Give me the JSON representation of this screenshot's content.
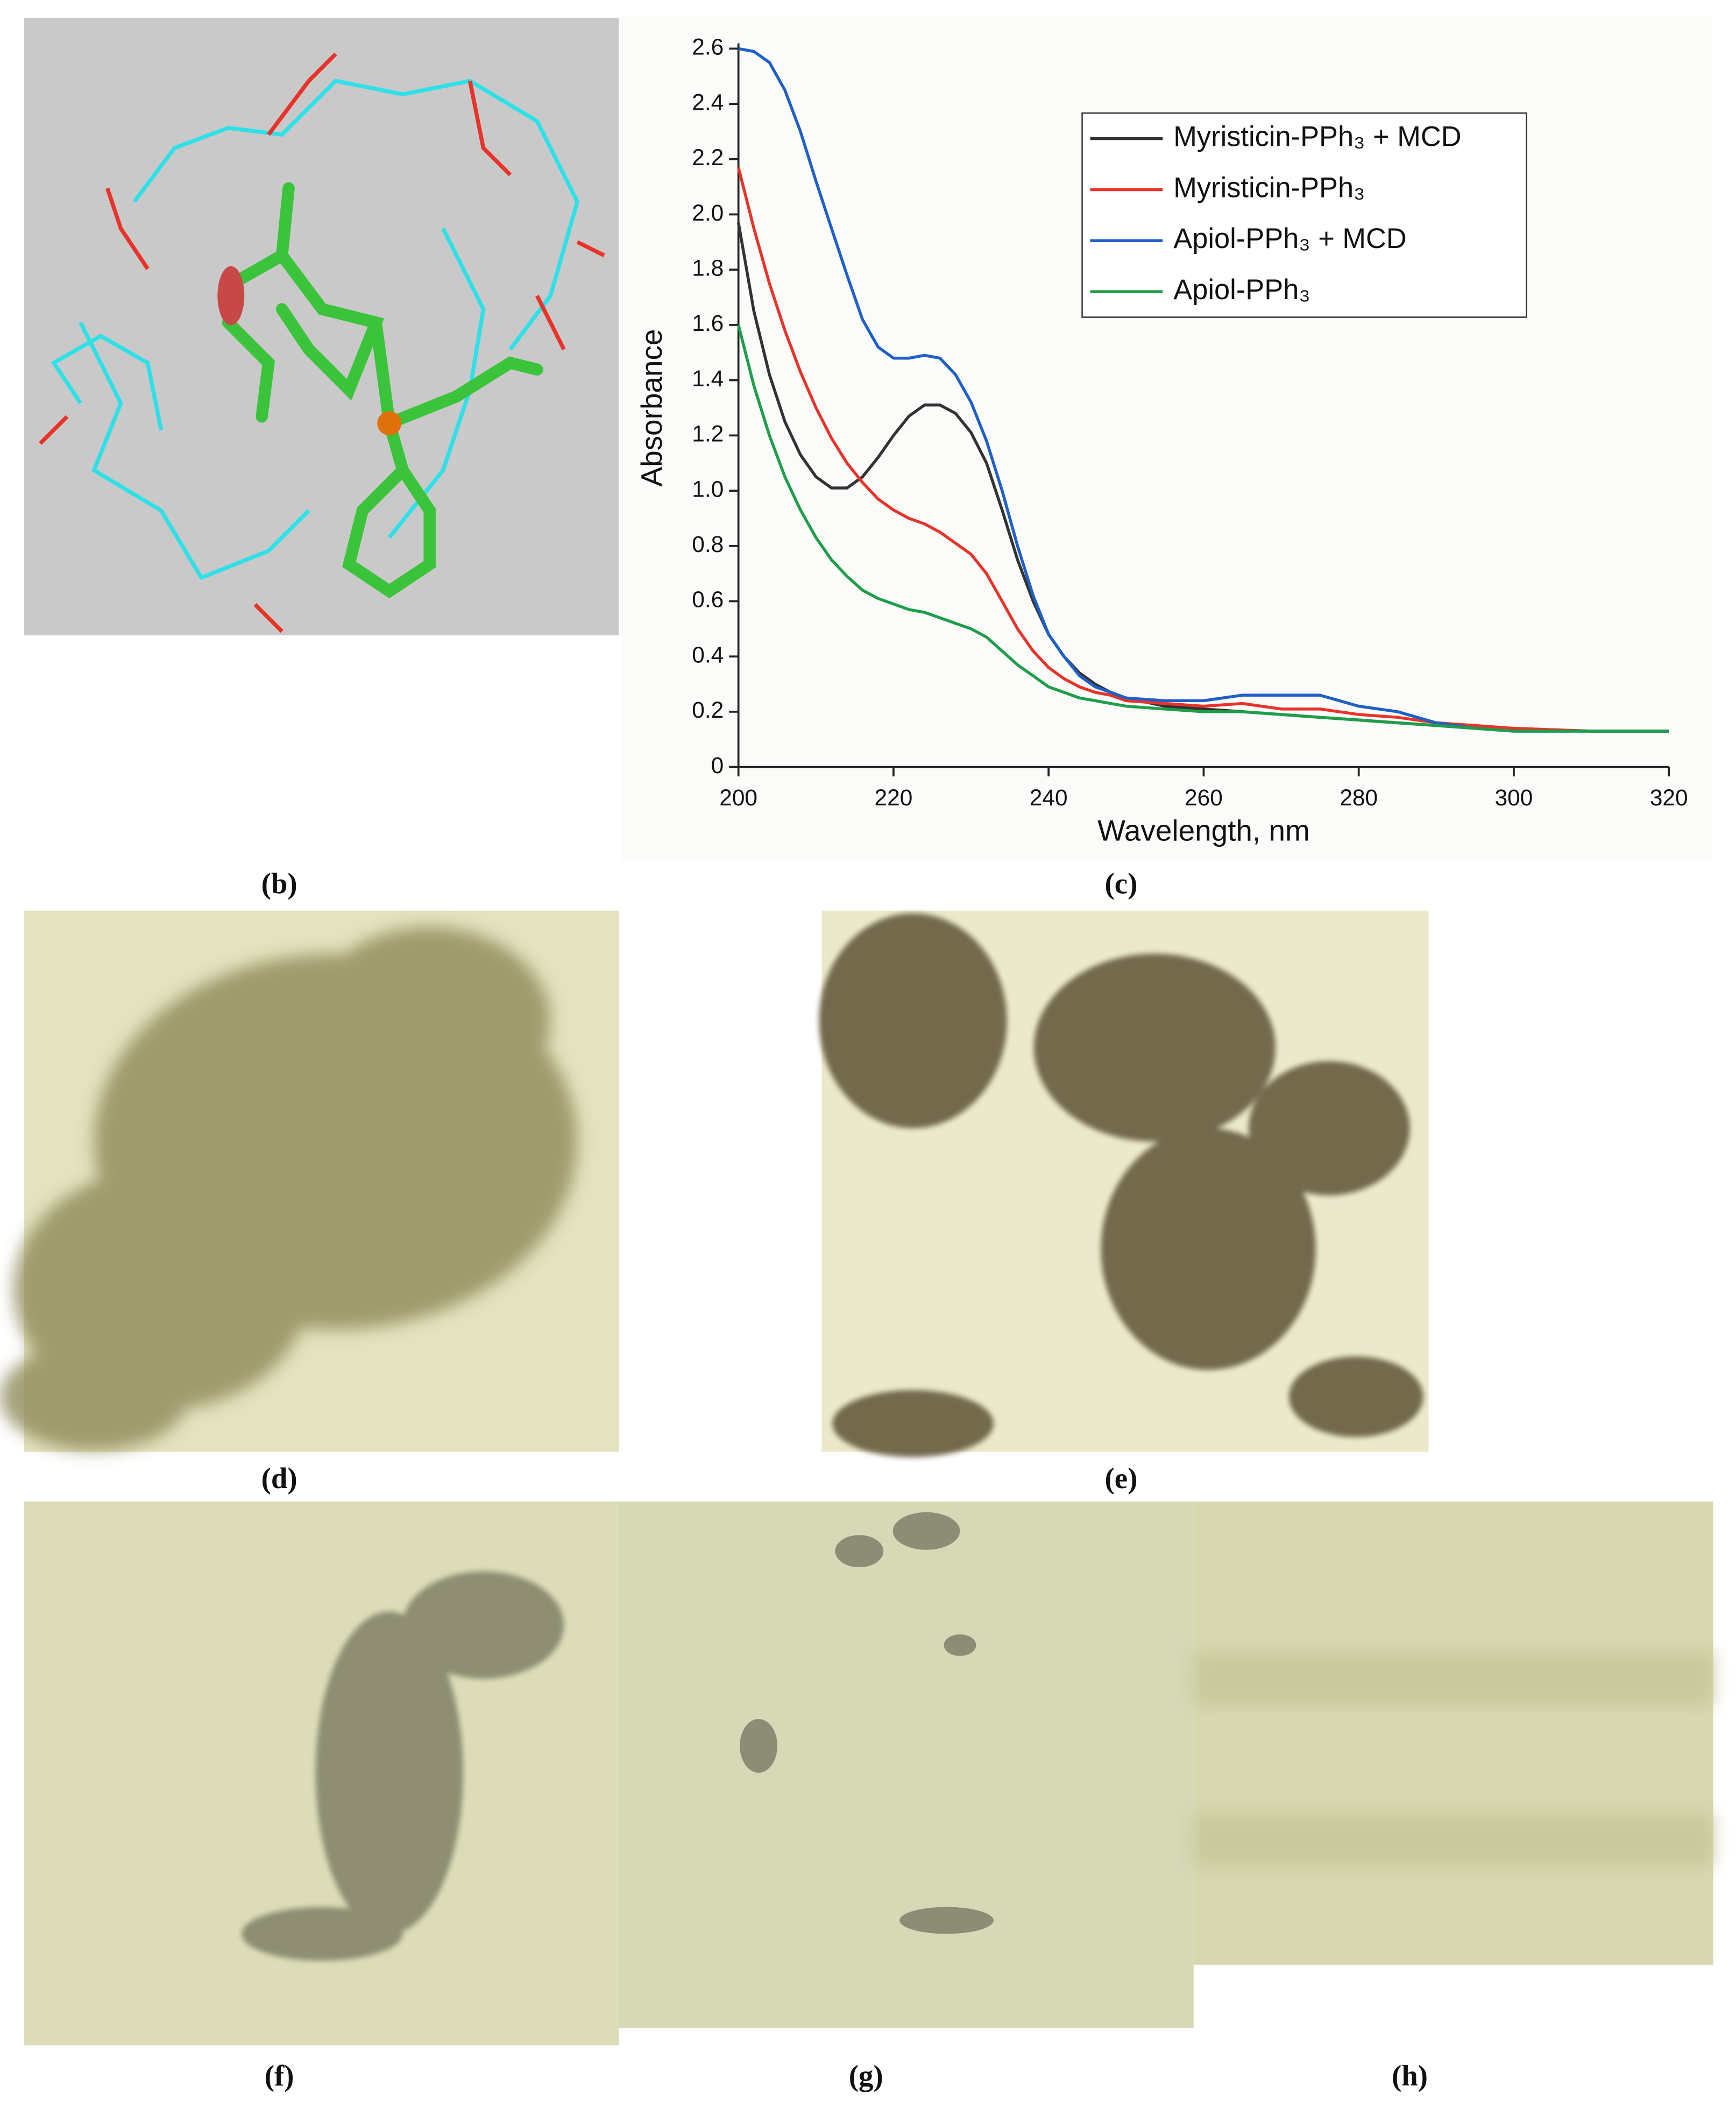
{
  "panel_labels": [
    "(b)",
    "(c)",
    "(d)",
    "(e)",
    "(f)",
    "(g)",
    "(h)"
  ],
  "chart_data": {
    "type": "line",
    "x_label": "Wavelength, nm",
    "y_label": "Absorbance",
    "x": [
      200,
      202,
      204,
      206,
      208,
      210,
      212,
      214,
      216,
      218,
      220,
      222,
      224,
      226,
      228,
      230,
      232,
      234,
      236,
      238,
      240,
      242,
      244,
      246,
      248,
      250,
      255,
      260,
      265,
      270,
      275,
      280,
      285,
      290,
      295,
      300,
      310,
      320
    ],
    "series": [
      {
        "name": "Myristicin-PPh₃ + MCD",
        "color": "#333333",
        "values": [
          1.97,
          1.65,
          1.42,
          1.25,
          1.13,
          1.05,
          1.01,
          1.01,
          1.05,
          1.12,
          1.2,
          1.27,
          1.31,
          1.31,
          1.28,
          1.21,
          1.1,
          0.93,
          0.75,
          0.6,
          0.48,
          0.4,
          0.34,
          0.3,
          0.27,
          0.25,
          0.22,
          0.21,
          0.2,
          0.19,
          0.18,
          0.17,
          0.16,
          0.15,
          0.14,
          0.14,
          0.13,
          0.13
        ]
      },
      {
        "name": "Myristicin-PPh₃",
        "color": "#e8332a",
        "values": [
          2.17,
          1.95,
          1.75,
          1.58,
          1.43,
          1.3,
          1.19,
          1.1,
          1.03,
          0.97,
          0.93,
          0.9,
          0.88,
          0.85,
          0.81,
          0.77,
          0.7,
          0.6,
          0.5,
          0.42,
          0.36,
          0.32,
          0.29,
          0.27,
          0.26,
          0.24,
          0.23,
          0.22,
          0.23,
          0.21,
          0.21,
          0.19,
          0.18,
          0.16,
          0.15,
          0.14,
          0.13,
          0.13
        ]
      },
      {
        "name": "Apiol-PPh₃ + MCD",
        "color": "#1f5fc8",
        "values": [
          2.6,
          2.59,
          2.55,
          2.45,
          2.3,
          2.12,
          1.95,
          1.78,
          1.62,
          1.52,
          1.48,
          1.48,
          1.49,
          1.48,
          1.42,
          1.32,
          1.18,
          1.0,
          0.8,
          0.62,
          0.48,
          0.4,
          0.33,
          0.29,
          0.27,
          0.25,
          0.24,
          0.24,
          0.26,
          0.26,
          0.26,
          0.22,
          0.2,
          0.16,
          0.14,
          0.13,
          0.13,
          0.13
        ]
      },
      {
        "name": "Apiol-PPh₃",
        "color": "#1e9e4a",
        "values": [
          1.6,
          1.38,
          1.2,
          1.05,
          0.93,
          0.83,
          0.75,
          0.69,
          0.64,
          0.61,
          0.59,
          0.57,
          0.56,
          0.54,
          0.52,
          0.5,
          0.47,
          0.42,
          0.37,
          0.33,
          0.29,
          0.27,
          0.25,
          0.24,
          0.23,
          0.22,
          0.21,
          0.2,
          0.2,
          0.19,
          0.18,
          0.17,
          0.16,
          0.15,
          0.14,
          0.13,
          0.13,
          0.13
        ]
      }
    ],
    "xlim": [
      200,
      320
    ],
    "xticks": [
      200,
      220,
      240,
      260,
      280,
      300,
      320
    ],
    "ylim": [
      0,
      2.6
    ],
    "yticks": [
      0,
      0.2,
      0.4,
      0.6,
      0.8,
      {
        "value": 1,
        "label": "1.0"
      },
      1.2,
      1.4,
      1.6,
      1.8,
      {
        "value": 2,
        "label": "2.0"
      },
      2.2,
      2.4,
      2.6
    ]
  }
}
